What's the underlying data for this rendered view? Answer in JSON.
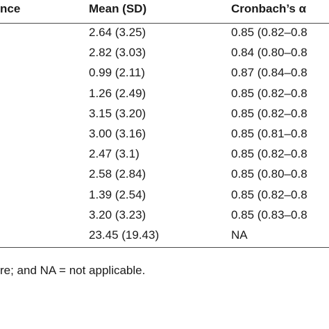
{
  "table": {
    "headers": {
      "col1": "nce",
      "col2": "Mean (SD)",
      "col3": "Cronbach’s α"
    },
    "rows": [
      {
        "mean": "2.64 (3.25)",
        "alpha": "0.85 (0.82–0.8"
      },
      {
        "mean": "2.82 (3.03)",
        "alpha": "0.84 (0.80–0.8"
      },
      {
        "mean": "0.99 (2.11)",
        "alpha": "0.87 (0.84–0.8"
      },
      {
        "mean": "1.26 (2.49)",
        "alpha": "0.85 (0.82–0.8"
      },
      {
        "mean": "3.15 (3.20)",
        "alpha": "0.85 (0.82–0.8"
      },
      {
        "mean": "3.00 (3.16)",
        "alpha": "0.85 (0.81–0.8"
      },
      {
        "mean": "2.47 (3.1)",
        "alpha": "0.85 (0.82–0.8"
      },
      {
        "mean": "2.58 (2.84)",
        "alpha": "0.85 (0.80–0.8"
      },
      {
        "mean": "1.39 (2.54)",
        "alpha": "0.85 (0.82–0.8"
      },
      {
        "mean": "3.20 (3.23)",
        "alpha": "0.85 (0.83–0.8"
      },
      {
        "mean": "23.45 (19.43)",
        "alpha": "NA"
      }
    ]
  },
  "footnote": "re; and NA = not applicable."
}
